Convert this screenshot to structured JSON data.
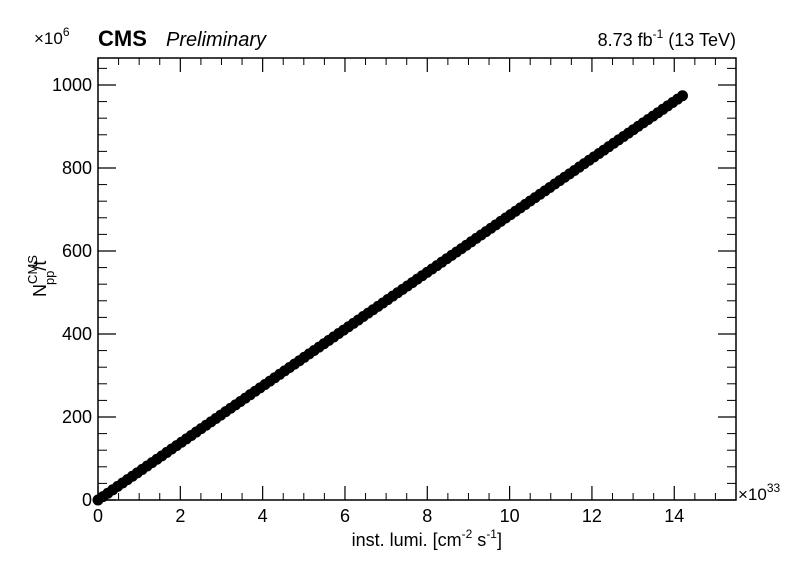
{
  "header": {
    "experiment": "CMS",
    "status": "Preliminary",
    "lumi_base": "8.73 fb",
    "lumi_exp": "-1",
    "lumi_energy": " (13 TeV)"
  },
  "chart_data": {
    "type": "scatter",
    "title": "",
    "xlabel": "inst. lumi. [cm⁻² s⁻¹]",
    "xlabel_parts": {
      "a": "inst. lumi. [cm",
      "b": "-2",
      "c": " s",
      "d": "-1",
      "e": "]"
    },
    "ylabel_parts": {
      "base": "N",
      "sup": "CMS",
      "sub": "pp",
      "tail": "/t"
    },
    "x_multiplier": {
      "base": "×10",
      "exp": "33"
    },
    "y_multiplier": {
      "base": "×10",
      "exp": "6"
    },
    "xlim": [
      0,
      15.5
    ],
    "ylim": [
      0,
      1065
    ],
    "x_ticks": [
      0,
      2,
      4,
      6,
      8,
      10,
      12,
      14
    ],
    "x_tick_labels": [
      "0",
      "2",
      "4",
      "6",
      "8",
      "10",
      "12",
      "14"
    ],
    "y_ticks": [
      0,
      200,
      400,
      600,
      800,
      1000
    ],
    "y_tick_labels": [
      "0",
      "200",
      "400",
      "600",
      "800",
      "1000"
    ],
    "series": [
      {
        "color": "#000000",
        "x_start": 0.0,
        "x_end": 14.2,
        "slope": 68.6,
        "n_points": 120
      }
    ],
    "grid": false,
    "legend": "none"
  }
}
